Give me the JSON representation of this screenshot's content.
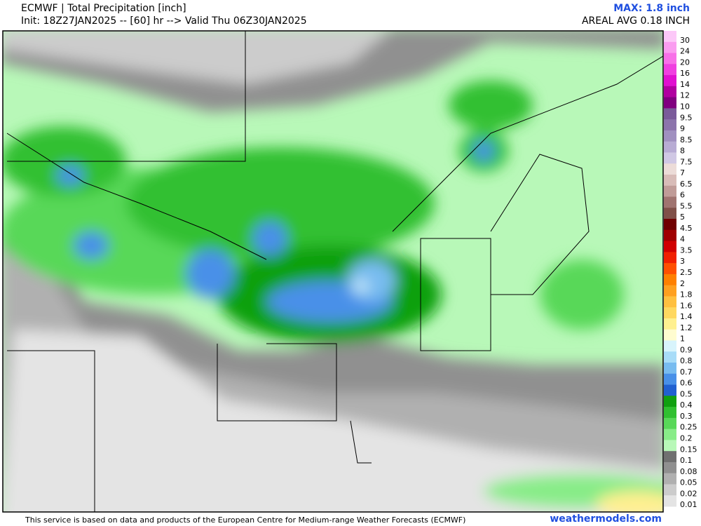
{
  "header": {
    "title": "ECMWF | Total Precipitation [inch]",
    "subtitle": "Init: 18Z27JAN2025 -- [60] hr --> Valid Thu 06Z30JAN2025",
    "max": "MAX: 1.8 inch",
    "areal_avg": "AREAL AVG 0.18 INCH"
  },
  "colorbar": [
    {
      "label": "30",
      "color": "#fcc8f8"
    },
    {
      "label": "24",
      "color": "#fa9cf0"
    },
    {
      "label": "20",
      "color": "#f870e8"
    },
    {
      "label": "16",
      "color": "#f040e0"
    },
    {
      "label": "14",
      "color": "#e010d0"
    },
    {
      "label": "12",
      "color": "#b000a0"
    },
    {
      "label": "10",
      "color": "#800080"
    },
    {
      "label": "9.5",
      "color": "#7a5a9a"
    },
    {
      "label": "9",
      "color": "#8c74ac"
    },
    {
      "label": "8.5",
      "color": "#a090c0"
    },
    {
      "label": "8",
      "color": "#b8acd4"
    },
    {
      "label": "7.5",
      "color": "#d0c8e4"
    },
    {
      "label": "7",
      "color": "#ecdcd8"
    },
    {
      "label": "6.5",
      "color": "#d8bcb8"
    },
    {
      "label": "6",
      "color": "#c09c98"
    },
    {
      "label": "5.5",
      "color": "#a07470"
    },
    {
      "label": "5",
      "color": "#805048"
    },
    {
      "label": "4.5",
      "color": "#700000"
    },
    {
      "label": "4",
      "color": "#a00000"
    },
    {
      "label": "3.5",
      "color": "#d00000"
    },
    {
      "label": "3",
      "color": "#f02000"
    },
    {
      "label": "2.5",
      "color": "#ff5000"
    },
    {
      "label": "2",
      "color": "#ff8000"
    },
    {
      "label": "1.8",
      "color": "#ffa020"
    },
    {
      "label": "1.6",
      "color": "#ffc040"
    },
    {
      "label": "1.4",
      "color": "#ffd860"
    },
    {
      "label": "1.2",
      "color": "#fff090"
    },
    {
      "label": "1",
      "color": "#fffcd0"
    },
    {
      "label": "0.9",
      "color": "#d8f4fc"
    },
    {
      "label": "0.8",
      "color": "#a8dcf8"
    },
    {
      "label": "0.7",
      "color": "#78bcf0"
    },
    {
      "label": "0.6",
      "color": "#4890e8"
    },
    {
      "label": "0.5",
      "color": "#2060d0"
    },
    {
      "label": "0.4",
      "color": "#10a010"
    },
    {
      "label": "0.3",
      "color": "#30c030"
    },
    {
      "label": "0.25",
      "color": "#58d858"
    },
    {
      "label": "0.2",
      "color": "#88ec88"
    },
    {
      "label": "0.15",
      "color": "#b8f8b8"
    },
    {
      "label": "0.1",
      "color": "#707070"
    },
    {
      "label": "0.08",
      "color": "#909090"
    },
    {
      "label": "0.05",
      "color": "#b0b0b0"
    },
    {
      "label": "0.02",
      "color": "#cccccc"
    },
    {
      "label": "0.01",
      "color": "#e4e4e4"
    }
  ],
  "footer": {
    "disclaimer": "This service is based on data and products of the European Centre for Medium-range Weather Forecasts (ECMWF)",
    "site": "weathermodels.com"
  }
}
